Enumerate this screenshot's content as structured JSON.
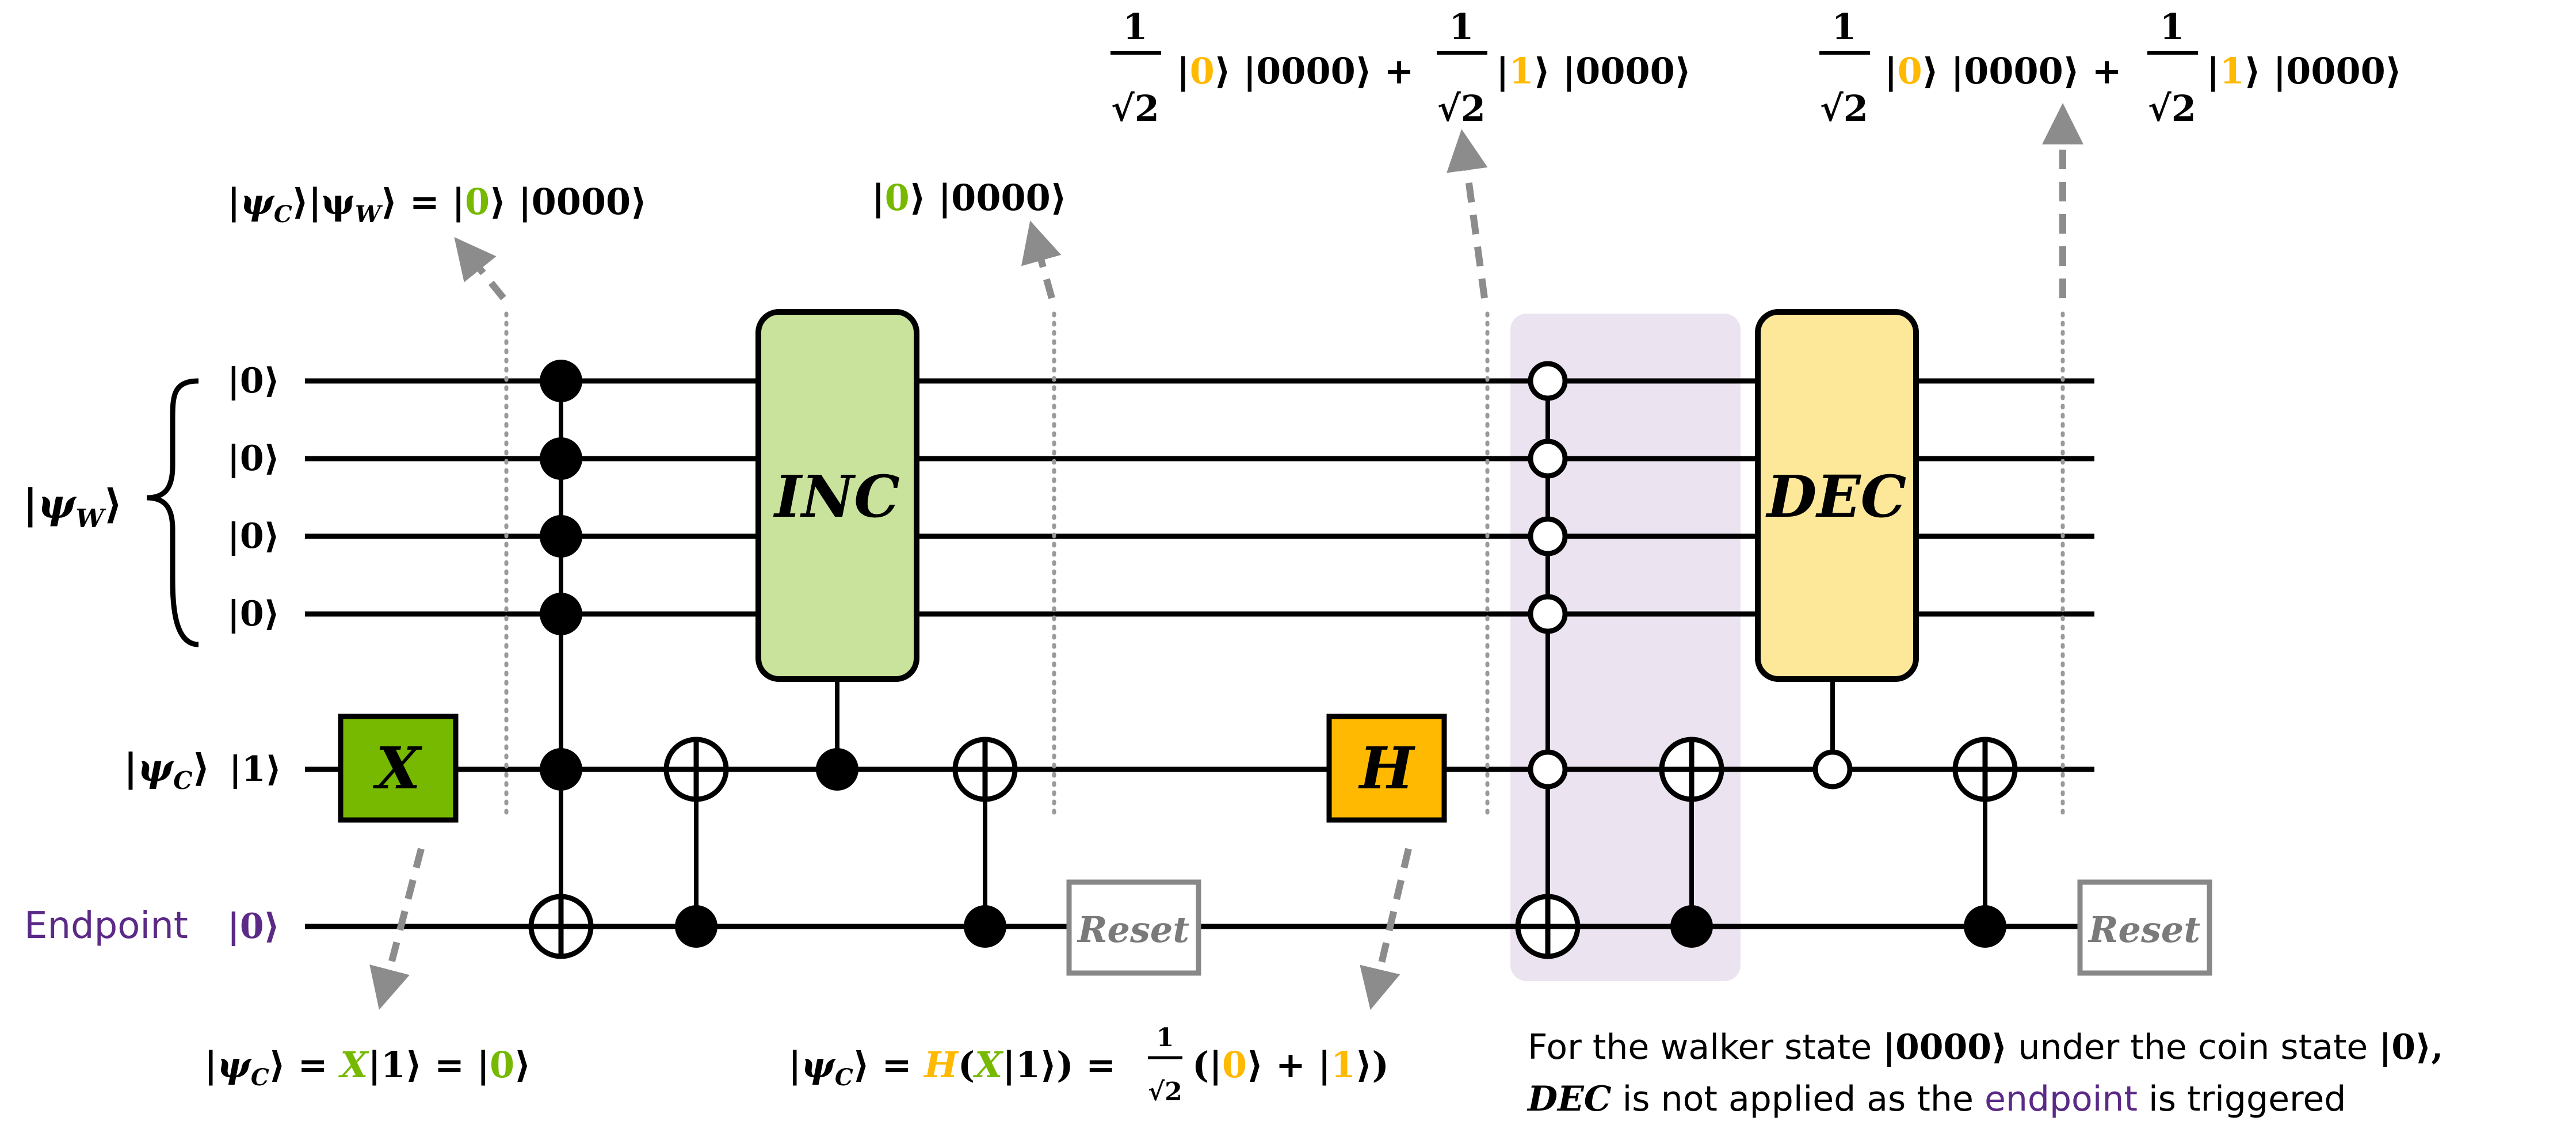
{
  "colors": {
    "wire": "#000000",
    "green": "#76b900",
    "gold": "#ffc000",
    "purple": "#5b2a86",
    "inc_fill": "#c9e39c",
    "dec_fill": "#fde89a",
    "x_fill": "#76b900",
    "h_fill": "#ffb900",
    "highlight": "#ece3f0",
    "reset_stroke": "#888888",
    "arrow": "#8c8c8c"
  },
  "registers": {
    "walker_label": "|ψ_W⟩",
    "walker_inits": [
      "|0⟩",
      "|0⟩",
      "|0⟩",
      "|0⟩"
    ],
    "coin_label": "|ψ_C⟩",
    "coin_init": "|1⟩",
    "endpoint_label": "Endpoint",
    "endpoint_init": "|0⟩"
  },
  "gates": {
    "x": "X",
    "inc": "INC",
    "h": "H",
    "dec": "DEC",
    "reset": "Reset"
  },
  "annotations": {
    "state1": {
      "prefix": "|ψ",
      "sub_c": "C",
      "mid": "⟩|ψ",
      "sub_w": "W",
      "eq": "⟩ = |",
      "coin": "0",
      "rest": "⟩ |0000⟩"
    },
    "state2": {
      "open": "|",
      "coin": "0",
      "rest": "⟩ |0000⟩"
    },
    "state3": {
      "one": "1",
      "sqrt2": "√2",
      "open": "|",
      "coin_a": "0",
      "rest_a": "⟩ |0000⟩ +",
      "coin_b": "1",
      "rest_b": "⟩ |0000⟩"
    },
    "state4": {
      "one": "1",
      "sqrt2": "√2",
      "open": "|",
      "coin_a": "0",
      "rest_a": "⟩ |0000⟩ +",
      "coin_b": "1",
      "rest_b": "⟩ |0000⟩"
    },
    "bottom_x": {
      "lhs": "|ψ",
      "sub": "C",
      "eq": "⟩ = ",
      "gate": "X",
      "arg": "|1⟩ = |",
      "coin": "0",
      "close": "⟩"
    },
    "bottom_h": {
      "lhs": "|ψ",
      "sub": "C",
      "eq": "⟩ = ",
      "gate_h": "H",
      "paren_open": "(",
      "gate_x": "X",
      "arg": "|1⟩) = ",
      "one": "1",
      "sqrt2": "√2",
      "sum_open": "(|",
      "coin_a": "0",
      "mid": "⟩ + |",
      "coin_b": "1",
      "sum_close": "⟩)"
    },
    "note": {
      "line1_a": "For the walker state ",
      "line1_state": "|0000⟩",
      "line1_b": " under the coin state ",
      "line1_coin": "|0⟩,",
      "line2_dec": "DEC",
      "line2_a": " is not applied as the ",
      "line2_endpoint": "endpoint",
      "line2_b": " is triggered"
    }
  }
}
